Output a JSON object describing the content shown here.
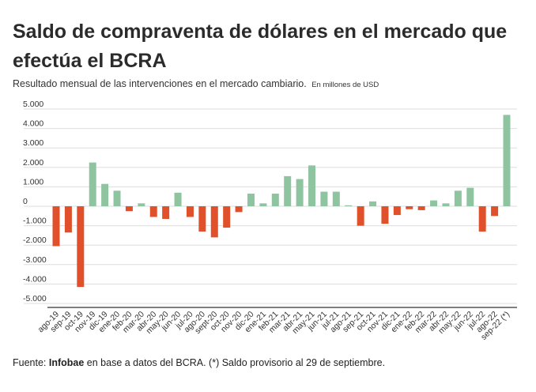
{
  "title": "Saldo de compraventa de dólares en el mercado que efectúa el BCRA",
  "subtitle": {
    "main": "Resultado  mensual de las intervenciones en el mercado cambiario.",
    "note": "En millones de USD"
  },
  "footer": {
    "prefix": "Fuente: ",
    "source": "Infobae",
    "rest": " en base a datos del BCRA.  (*) Saldo provisorio al 29 de septiembre."
  },
  "colors": {
    "positive": "#8fc4a1",
    "negative": "#e0512b"
  },
  "chart_data": {
    "type": "bar",
    "title": "Saldo de compraventa de dólares en el mercado que efectúa el BCRA",
    "ylabel": "",
    "xlabel": "",
    "ylim": [
      -5000,
      5000
    ],
    "yticks": [
      5000,
      4000,
      3000,
      2000,
      1000,
      0,
      -1000,
      -2000,
      -3000,
      -4000,
      -5000
    ],
    "ytick_labels": [
      "5.000",
      "4.000",
      "3.000",
      "2.000",
      "1.000",
      "0",
      "-1.000",
      "-2.000",
      "-3.000",
      "-4.000",
      "-5.000"
    ],
    "grid": true,
    "categories": [
      "ago-19",
      "sep-19",
      "oct-19",
      "nov-19",
      "dic-19",
      "ene-20",
      "feb-20",
      "mar-20",
      "abr-20",
      "may-20",
      "jun-20",
      "jul-20",
      "ago-20",
      "sept-20",
      "oct-20",
      "nov-20",
      "dic-20",
      "ene-21",
      "feb-21",
      "mar-21",
      "abr-21",
      "may-21",
      "jun-21",
      "jul-21",
      "ago-21",
      "sep-21",
      "oct-21",
      "nov-21",
      "dic-21",
      "ene-22",
      "feb-22",
      "mar-22",
      "abr-22",
      "may-22",
      "jun-22",
      "jul-22",
      "ago-22",
      "sep-22 (*)"
    ],
    "values": [
      -2050,
      -1350,
      -4150,
      2250,
      1150,
      800,
      -250,
      150,
      -550,
      -650,
      700,
      -550,
      -1300,
      -1600,
      -1100,
      -300,
      650,
      150,
      650,
      1550,
      1400,
      2100,
      750,
      750,
      50,
      -1000,
      250,
      -900,
      -450,
      -150,
      -200,
      300,
      150,
      800,
      950,
      -1300,
      -500,
      4700
    ]
  }
}
